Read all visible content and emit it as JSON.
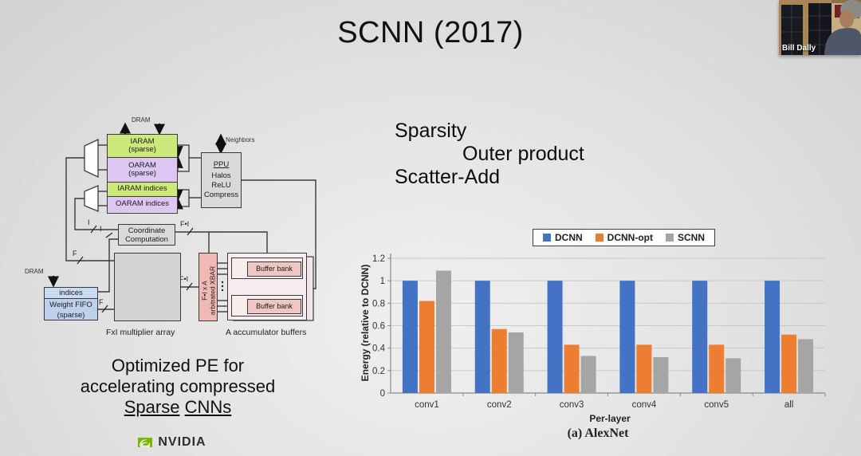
{
  "slide": {
    "title": "SCNN (2017)",
    "bullets": {
      "line1": "Sparsity",
      "line2": "Outer product",
      "line3": "Scatter-Add"
    },
    "pe_caption": {
      "line1": "Optimized PE for",
      "line2": "accelerating compressed",
      "line3_word1": "Sparse",
      "line3_word2": "CNNs"
    },
    "nvidia_wordmark": "NVIDIA"
  },
  "webcam": {
    "name": "Bill Dally"
  },
  "diagram": {
    "dram_top_label": "DRAM",
    "dram_left_label": "DRAM",
    "neighbors_label": "Neighbors",
    "iaram_line1": "IARAM",
    "iaram_line2": "(sparse)",
    "oaram_line1": "OARAM",
    "oaram_line2": "(sparse)",
    "iaram_indices": "IARAM indices",
    "oaram_indices": "OARAM indices",
    "ppu_title": "PPU",
    "ppu_lines": [
      "Halos",
      "ReLU",
      "Compress"
    ],
    "coord_line1": "Coordinate",
    "coord_line2": "Computation",
    "indices_label": "indices",
    "wfifo_line1": "Weight FIFO",
    "wfifo_line2": "(sparse)",
    "mult_array_label": "FxI multiplier array",
    "xbar_line1": "F•I x A",
    "xbar_line2": "arbitrated XBAR",
    "buffer_bank_label": "Buffer bank",
    "acc_label": "A accumulator buffers",
    "wire_f_top": "F",
    "wire_i_mux": "I",
    "wire_i_indices": "I",
    "wire_f_fifo": "F",
    "wire_fi_coord": "F•I",
    "wire_fi_array": "F•I",
    "colors": {
      "green": "#cde87b",
      "purple": "#dbc7f2",
      "blue": "#bdd0ec",
      "gray": "#d9d9d9",
      "pink": "#f0b9b5",
      "bank_pink": "#eec6c4"
    }
  },
  "chart_data": {
    "type": "bar",
    "categories": [
      "conv1",
      "conv2",
      "conv3",
      "conv4",
      "conv5",
      "all"
    ],
    "series": [
      {
        "name": "DCNN",
        "color": "#4472c4",
        "values": [
          1.0,
          1.0,
          1.0,
          1.0,
          1.0,
          1.0
        ]
      },
      {
        "name": "DCNN-opt",
        "color": "#ed7d31",
        "values": [
          0.82,
          0.57,
          0.43,
          0.43,
          0.43,
          0.52
        ]
      },
      {
        "name": "SCNN",
        "color": "#a5a5a5",
        "values": [
          1.09,
          0.54,
          0.33,
          0.32,
          0.31,
          0.48
        ]
      }
    ],
    "title": "",
    "ylabel": "Energy (relative to DCNN)",
    "xlabel": "Per-layer",
    "caption": "(a) AlexNet",
    "ylim": [
      0,
      1.2
    ],
    "yticks": [
      0,
      0.2,
      0.4,
      0.6,
      0.8,
      1,
      1.2
    ],
    "grid": true,
    "legend_position": "top"
  }
}
